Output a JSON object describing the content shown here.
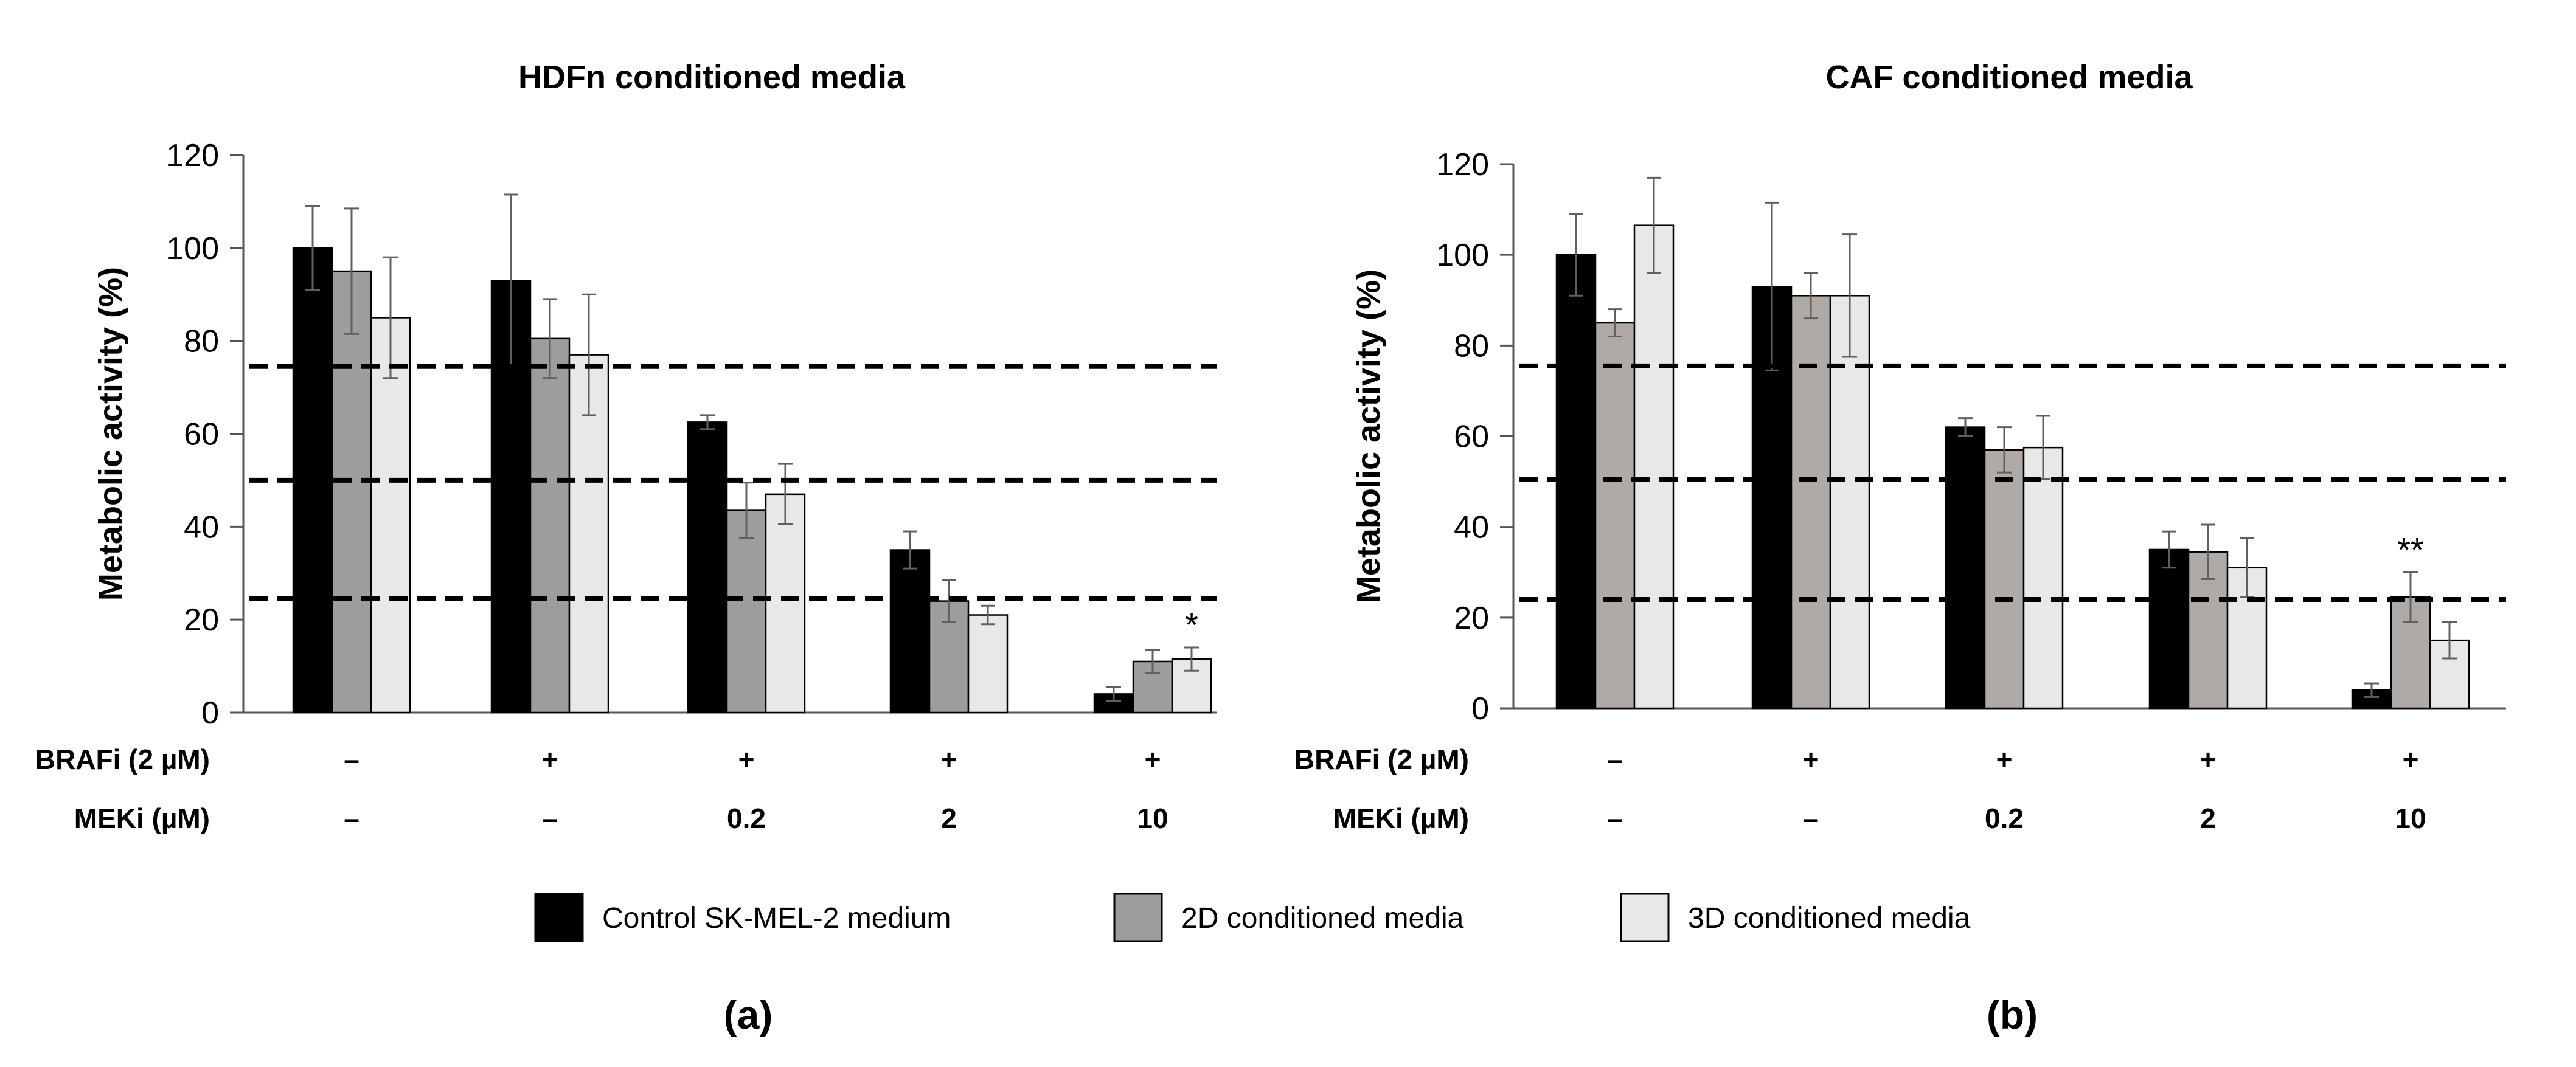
{
  "figure_labels": [
    "(a)",
    "(b)"
  ],
  "colors": {
    "control": "#000000",
    "cm2d_a": "#9d9d9d",
    "cm2d_b": "#b0aaa7",
    "cm3d": "#e8e8e8",
    "dash": "#000000",
    "error_bar": "#606060"
  },
  "legend": {
    "items": [
      {
        "label": "Control SK-MEL-2 medium",
        "color": "#000000"
      },
      {
        "label": "2D conditioned media",
        "color": "#9d9d9d"
      },
      {
        "label": "3D conditioned media",
        "color": "#e8e8e8"
      }
    ]
  },
  "conditions": {
    "braf_label": "BRAFi (2 µM)",
    "mek_label": "MEKi (µM)",
    "braf_values": [
      "–",
      "+",
      "+",
      "+",
      "+"
    ],
    "mek_values": [
      "–",
      "–",
      "0.2",
      "2",
      "10"
    ]
  },
  "chart_data": [
    {
      "type": "bar",
      "panel": "(a)",
      "title": "HDFn conditioned media",
      "xlabel": "",
      "ylabel": "Metabolic activity (%)",
      "ylim": [
        0,
        120
      ],
      "yticks": [
        0,
        20,
        40,
        60,
        80,
        100,
        120
      ],
      "grid": false,
      "reference_lines": [
        24.5,
        50,
        74.5
      ],
      "categories": [
        "1",
        "2",
        "3",
        "4",
        "5"
      ],
      "series": [
        {
          "name": "Control SK-MEL-2 medium",
          "values": [
            100,
            93,
            62.5,
            35,
            4
          ],
          "errors": [
            9,
            18.5,
            1.5,
            4,
            1.5
          ]
        },
        {
          "name": "2D conditioned media",
          "values": [
            95,
            80.5,
            43.5,
            24,
            11
          ],
          "errors": [
            13.5,
            8.5,
            6,
            4.5,
            2.5
          ]
        },
        {
          "name": "3D conditioned media",
          "values": [
            85,
            77,
            47,
            21,
            11.5
          ],
          "errors": [
            13,
            13,
            6.5,
            2,
            2.5
          ]
        }
      ],
      "annotations": [
        {
          "category_index": 4,
          "series_index": 2,
          "text": "*"
        }
      ]
    },
    {
      "type": "bar",
      "panel": "(b)",
      "title": "CAF conditioned media",
      "xlabel": "",
      "ylabel": "Metabolic activity (%)",
      "ylim": [
        0,
        120
      ],
      "yticks": [
        0,
        20,
        40,
        60,
        80,
        100,
        120
      ],
      "grid": false,
      "reference_lines": [
        24,
        50.5,
        75.5
      ],
      "categories": [
        "1",
        "2",
        "3",
        "4",
        "5"
      ],
      "series": [
        {
          "name": "Control SK-MEL-2 medium",
          "values": [
            100,
            93,
            62,
            35,
            4
          ],
          "errors": [
            9,
            18.5,
            2,
            4,
            1.5
          ]
        },
        {
          "name": "2D conditioned media",
          "values": [
            85,
            91,
            57,
            34.5,
            24.5
          ],
          "errors": [
            3,
            5,
            5,
            6,
            5.5
          ]
        },
        {
          "name": "3D conditioned media",
          "values": [
            106.5,
            91,
            57.5,
            31,
            15
          ],
          "errors": [
            10.5,
            13.5,
            7,
            6.5,
            4
          ]
        }
      ],
      "annotations": [
        {
          "category_index": 4,
          "series_index": 1,
          "text": "**"
        }
      ]
    }
  ]
}
